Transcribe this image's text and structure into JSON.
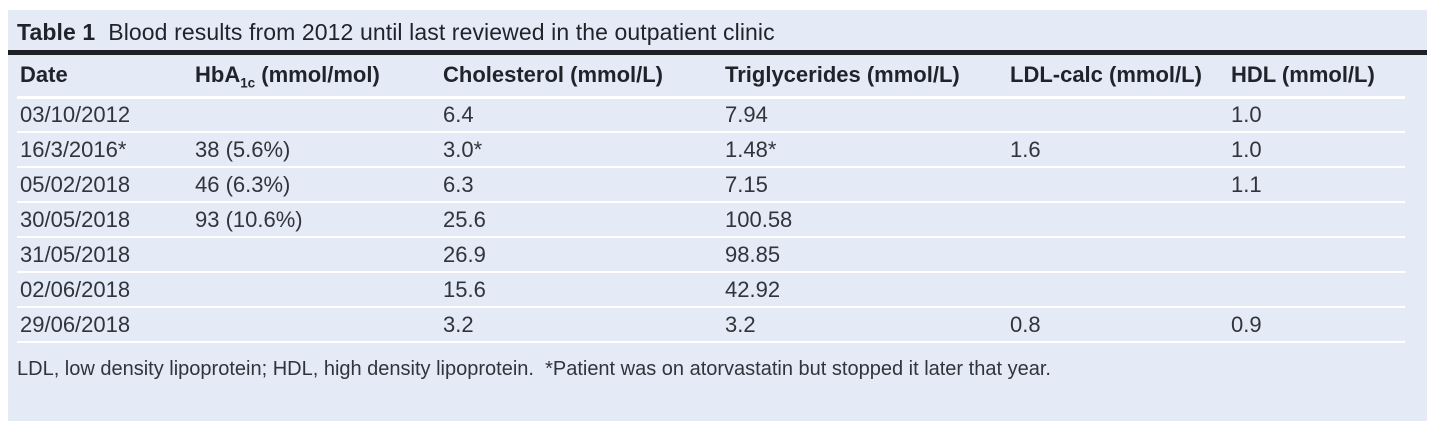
{
  "title": {
    "label": "Table 1",
    "text": "Blood results from 2012 until last reviewed in the outpatient clinic"
  },
  "table": {
    "columns": [
      {
        "key": "date",
        "label": "Date"
      },
      {
        "key": "hba1c",
        "label_prefix": "HbA",
        "label_sub": "1c",
        "label_suffix": " (mmol/mol)"
      },
      {
        "key": "cholesterol",
        "label": "Cholesterol (mmol/L)"
      },
      {
        "key": "triglycerides",
        "label": "Triglycerides (mmol/L)"
      },
      {
        "key": "ldl-calc",
        "label": "LDL-calc (mmol/L)"
      },
      {
        "key": "hdl",
        "label": "HDL (mmol/L)"
      }
    ],
    "rows": [
      [
        "03/10/2012",
        "",
        "6.4",
        "7.94",
        "",
        "1.0"
      ],
      [
        "16/3/2016*",
        "38 (5.6%)",
        "3.0*",
        "1.48*",
        "1.6",
        "1.0"
      ],
      [
        "05/02/2018",
        "46 (6.3%)",
        "6.3",
        "7.15",
        "",
        "1.1"
      ],
      [
        "30/05/2018",
        "93 (10.6%)",
        "25.6",
        "100.58",
        "",
        ""
      ],
      [
        "31/05/2018",
        "",
        "26.9",
        "98.85",
        "",
        ""
      ],
      [
        "02/06/2018",
        "",
        "15.6",
        "42.92",
        "",
        ""
      ],
      [
        "29/06/2018",
        "",
        "3.2",
        "3.2",
        "0.8",
        "0.9"
      ]
    ]
  },
  "footnote": "LDL, low density lipoprotein; HDL, high density lipoprotein.  *Patient was on atorvastatin but stopped it later that year.",
  "colors": {
    "panel_bg": "#e4eaf6",
    "title_rule": "#1f2025",
    "heading_text": "#1f232a",
    "body_text": "#30343b",
    "separator": "#ffffff"
  }
}
